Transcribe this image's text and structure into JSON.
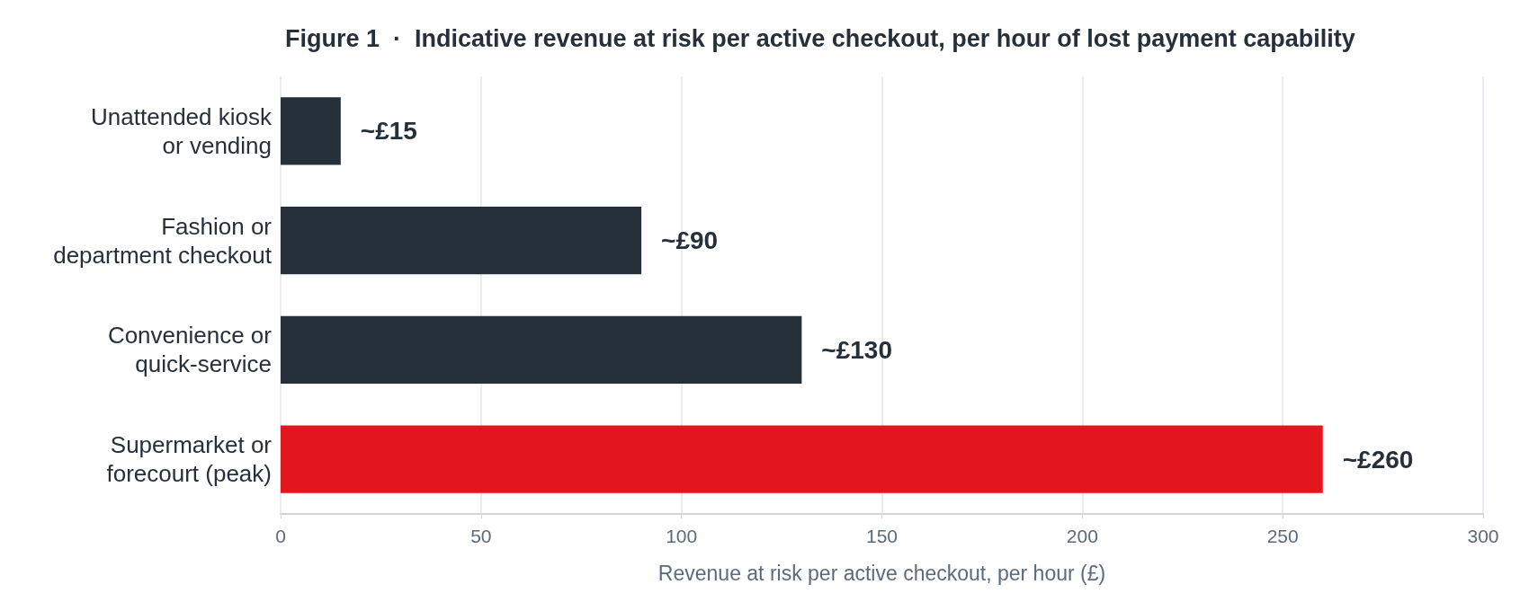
{
  "chart_data": {
    "type": "bar",
    "orientation": "horizontal",
    "title": "Figure 1  ·  Indicative revenue at risk per active checkout, per hour of lost payment capability",
    "xlabel": "Revenue at risk per active checkout, per hour (£)",
    "categories": [
      "Unattended kiosk\nor vending",
      "Fashion or\ndepartment checkout",
      "Convenience or\nquick-service",
      "Supermarket or\nforecourt (peak)"
    ],
    "values": [
      15,
      90,
      130,
      260
    ],
    "colors": [
      "#25303b",
      "#25303b",
      "#25303b",
      "#e3161f"
    ],
    "value_labels": [
      "~£15",
      "~£90",
      "~£130",
      "~£260"
    ],
    "xlim": [
      0,
      300
    ],
    "xticks": [
      0,
      50,
      100,
      150,
      200,
      250,
      300
    ],
    "grid": "x"
  }
}
